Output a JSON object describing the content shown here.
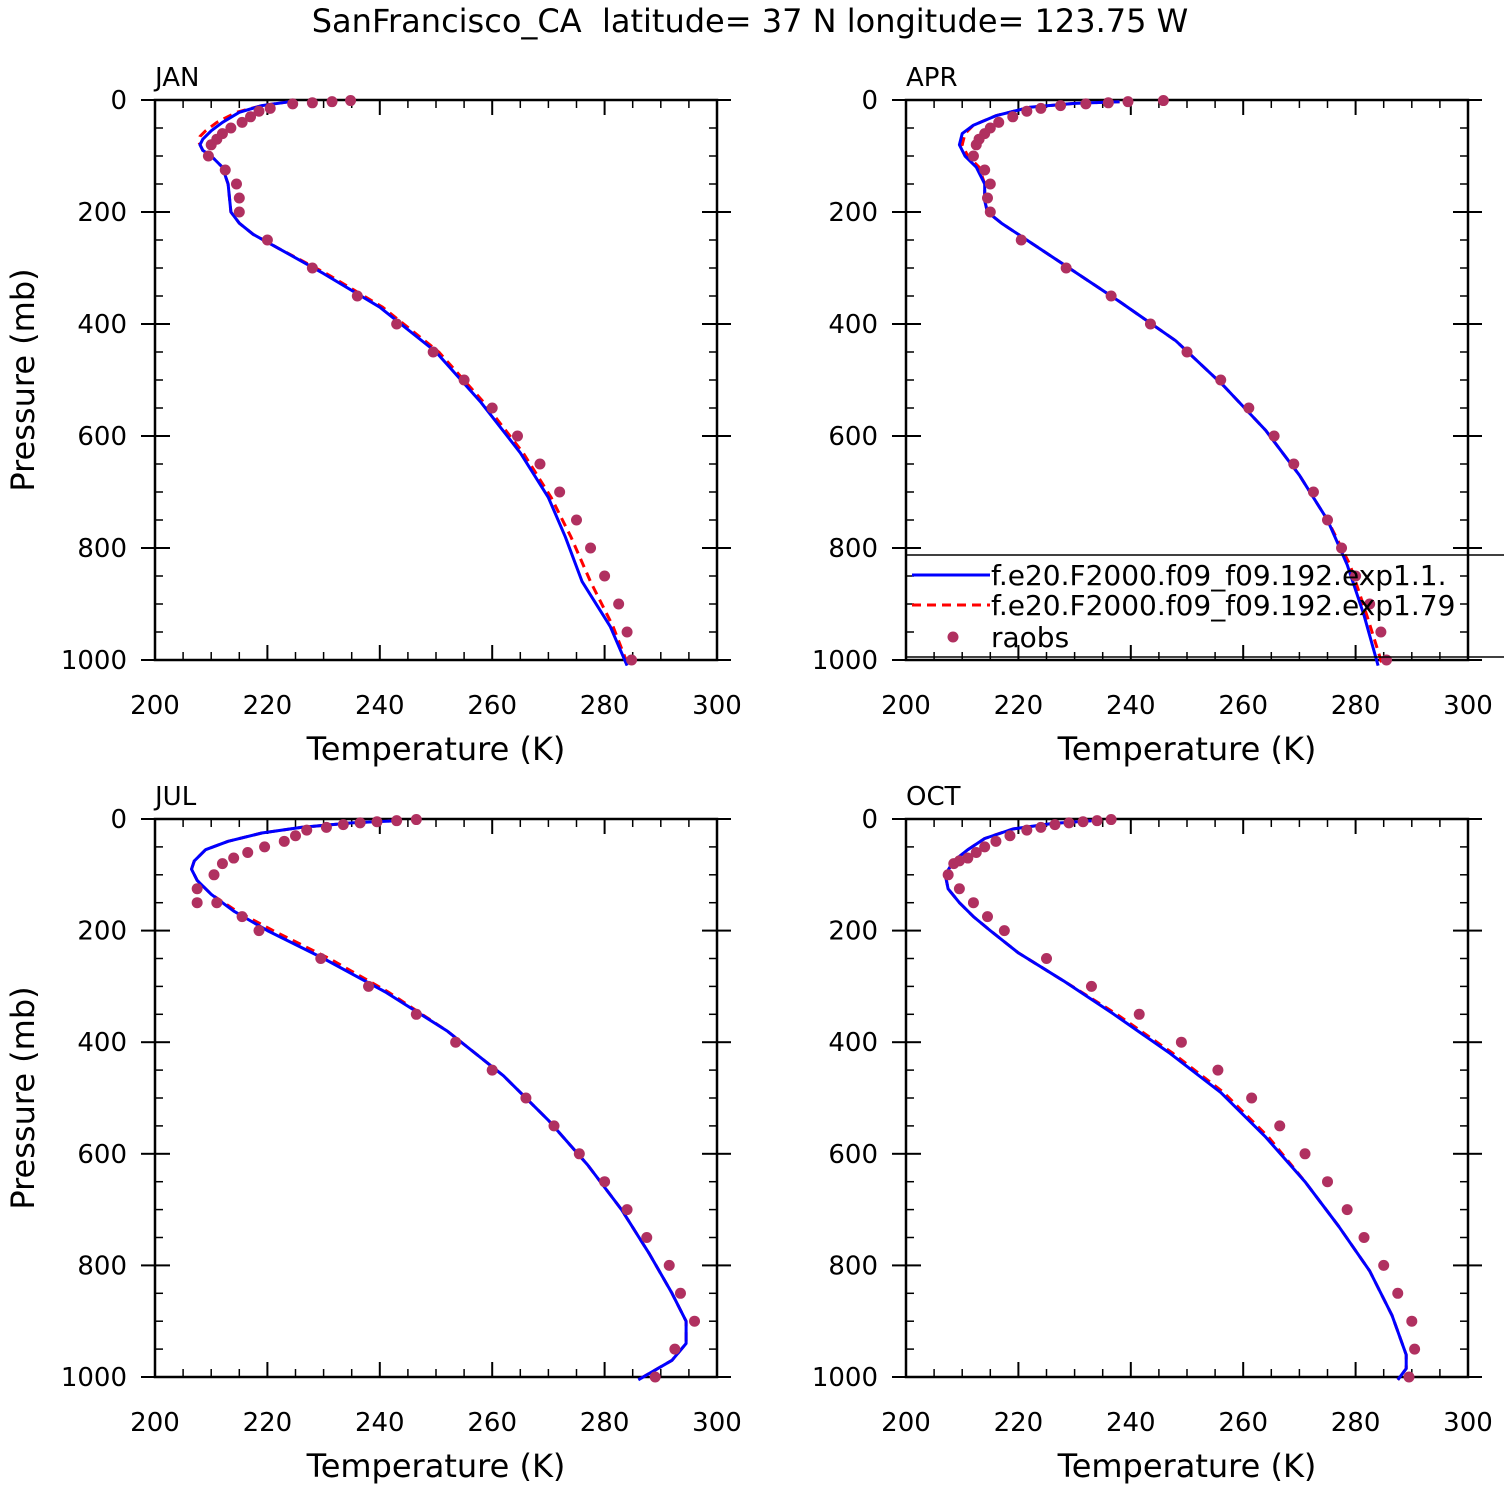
{
  "figure": {
    "title": "SanFrancisco_CA  latitude= 37 N longitude= 123.75 W"
  },
  "legend": {
    "placement": "inside APR panel, lower-right, extending past right edge",
    "entries": [
      {
        "label": "f.e20.F2000.f09_f09.192.exp1.1.",
        "style": "solid",
        "color": "#0000ff"
      },
      {
        "label": "f.e20.F2000.f09_f09.192.exp1.79",
        "style": "dashed",
        "color": "#ff0000"
      },
      {
        "label": "raobs",
        "style": "dot",
        "color": "#b03060"
      }
    ]
  },
  "colors": {
    "model_a": "#0000ff",
    "model_b": "#ff0000",
    "raobs": "#b03060",
    "axes": "#000000"
  },
  "chart_data": [
    {
      "type": "line",
      "panel": "JAN",
      "xlabel": "Temperature (K)",
      "ylabel": "Pressure (mb)",
      "xlim": [
        200,
        300
      ],
      "ylim": [
        0,
        1000
      ],
      "y_inverted": true,
      "xticks": [
        "200",
        "220",
        "240",
        "260",
        "280",
        "300"
      ],
      "yticks": [
        "0",
        "200",
        "400",
        "600",
        "800",
        "1000"
      ],
      "series": [
        {
          "name": "f.e20.F2000.f09_f09.192.exp1.1.",
          "style": "solid",
          "x": [
            224.0,
            219.0,
            215.0,
            212.0,
            210.0,
            208.5,
            208.0,
            208.5,
            210.0,
            212.0,
            213.0,
            213.5,
            215.0,
            217.5,
            222.0,
            230.0,
            240.0,
            250.0,
            258.0,
            265.0,
            270.0,
            273.0,
            276.0,
            281.0,
            284.0
          ],
          "y": [
            3,
            10,
            22,
            40,
            55,
            70,
            80,
            90,
            100,
            120,
            150,
            200,
            220,
            240,
            265,
            310,
            370,
            450,
            540,
            630,
            710,
            780,
            860,
            940,
            1010
          ]
        },
        {
          "name": "f.e20.F2000.f09_f09.192.exp1.79",
          "style": "dashed",
          "x": [
            224.0,
            219.0,
            214.5,
            211.0,
            209.0,
            208.0,
            207.8,
            208.5,
            210.0,
            212.0,
            213.0,
            213.5,
            215.0,
            217.5,
            222.0,
            230.5,
            240.5,
            250.5,
            258.5,
            265.5,
            270.5,
            274.0,
            277.5,
            281.5,
            284.2
          ],
          "y": [
            3,
            10,
            22,
            40,
            55,
            65,
            75,
            90,
            100,
            120,
            150,
            200,
            220,
            240,
            265,
            310,
            370,
            450,
            540,
            630,
            710,
            780,
            860,
            940,
            1010
          ]
        },
        {
          "name": "raobs",
          "style": "dot",
          "x": [
            234.8,
            231.5,
            228.0,
            224.5,
            220.5,
            218.5,
            217.0,
            215.5,
            213.5,
            212.0,
            211.0,
            210.0,
            209.5,
            212.5,
            214.5,
            215.0,
            215.0,
            220.0,
            228.0,
            236.0,
            243.0,
            249.5,
            255.0,
            260.0,
            264.5,
            268.5,
            272.0,
            275.0,
            277.5,
            280.0,
            282.5,
            284.0,
            284.8
          ],
          "y": [
            1,
            3,
            5,
            7,
            15,
            20,
            30,
            40,
            50,
            60,
            70,
            80,
            100,
            125,
            150,
            175,
            200,
            250,
            300,
            350,
            400,
            450,
            500,
            550,
            600,
            650,
            700,
            750,
            800,
            850,
            900,
            950,
            1000
          ]
        }
      ]
    },
    {
      "type": "line",
      "panel": "APR",
      "xlabel": "Temperature (K)",
      "ylabel": "",
      "xlim": [
        200,
        300
      ],
      "ylim": [
        0,
        1000
      ],
      "y_inverted": true,
      "xticks": [
        "200",
        "220",
        "240",
        "260",
        "280",
        "300"
      ],
      "yticks": [
        "0",
        "200",
        "400",
        "600",
        "800",
        "1000"
      ],
      "series": [
        {
          "name": "f.e20.F2000.f09_f09.192.exp1.1.",
          "style": "solid",
          "x": [
            238.0,
            230.0,
            222.0,
            216.0,
            212.0,
            210.0,
            209.5,
            210.5,
            212.5,
            214.0,
            214.0,
            214.5,
            217.0,
            221.5,
            229.0,
            238.0,
            248.0,
            256.5,
            264.0,
            270.0,
            275.0,
            278.5,
            281.5,
            284.0
          ],
          "y": [
            3,
            6,
            13,
            28,
            45,
            60,
            80,
            100,
            120,
            150,
            180,
            200,
            220,
            250,
            300,
            360,
            430,
            510,
            590,
            670,
            750,
            830,
            920,
            1010
          ]
        },
        {
          "name": "f.e20.F2000.f09_f09.192.exp1.79",
          "style": "dashed",
          "x": [
            238.0,
            230.0,
            222.0,
            216.0,
            212.0,
            210.5,
            210.0,
            211.0,
            213.0,
            214.0,
            214.0,
            214.5,
            217.0,
            221.5,
            229.0,
            238.0,
            248.0,
            256.5,
            264.0,
            270.0,
            275.0,
            279.0,
            282.0,
            284.8
          ],
          "y": [
            3,
            6,
            13,
            28,
            45,
            60,
            80,
            100,
            120,
            150,
            180,
            200,
            220,
            250,
            300,
            360,
            430,
            510,
            590,
            670,
            750,
            830,
            920,
            1010
          ]
        },
        {
          "name": "raobs",
          "style": "dot",
          "x": [
            245.8,
            239.5,
            236.0,
            232.0,
            227.5,
            224.0,
            221.5,
            219.0,
            216.5,
            215.0,
            214.0,
            213.0,
            212.5,
            212.0,
            214.0,
            215.0,
            214.5,
            215.0,
            220.5,
            228.5,
            236.5,
            243.5,
            250.0,
            256.0,
            261.0,
            265.5,
            269.0,
            272.5,
            275.0,
            277.5,
            280.0,
            282.5,
            284.5,
            285.5
          ],
          "y": [
            1,
            3,
            5,
            7,
            10,
            15,
            20,
            30,
            40,
            50,
            60,
            70,
            80,
            100,
            125,
            150,
            175,
            200,
            250,
            300,
            350,
            400,
            450,
            500,
            550,
            600,
            650,
            700,
            750,
            800,
            850,
            900,
            950,
            1000
          ]
        }
      ]
    },
    {
      "type": "line",
      "panel": "JUL",
      "xlabel": "Temperature (K)",
      "ylabel": "Pressure (mb)",
      "xlim": [
        200,
        300
      ],
      "ylim": [
        0,
        1000
      ],
      "y_inverted": true,
      "xticks": [
        "200",
        "220",
        "240",
        "260",
        "280",
        "300"
      ],
      "yticks": [
        "0",
        "200",
        "400",
        "600",
        "800",
        "1000"
      ],
      "series": [
        {
          "name": "f.e20.F2000.f09_f09.192.exp1.1.",
          "style": "solid",
          "x": [
            243.0,
            235.0,
            226.0,
            219.0,
            213.0,
            209.0,
            207.0,
            206.5,
            207.5,
            210.0,
            214.0,
            220.0,
            230.0,
            241.0,
            252.0,
            262.0,
            270.0,
            277.0,
            283.0,
            288.0,
            292.0,
            294.5,
            294.5,
            292.0,
            286.0
          ],
          "y": [
            3,
            7,
            15,
            25,
            40,
            55,
            75,
            90,
            110,
            135,
            165,
            200,
            250,
            310,
            380,
            460,
            540,
            620,
            700,
            780,
            850,
            900,
            940,
            970,
            1005
          ]
        },
        {
          "name": "f.e20.F2000.f09_f09.192.exp1.79",
          "style": "dashed",
          "x": [
            243.0,
            235.0,
            226.0,
            219.0,
            213.0,
            209.0,
            207.0,
            206.5,
            207.5,
            210.0,
            214.5,
            221.0,
            231.0,
            241.5,
            252.0,
            262.0,
            270.0,
            277.0,
            283.0,
            288.0,
            292.0,
            294.5,
            294.5,
            292.0,
            286.0
          ],
          "y": [
            3,
            7,
            15,
            25,
            40,
            55,
            75,
            90,
            110,
            135,
            165,
            200,
            250,
            310,
            380,
            460,
            540,
            620,
            700,
            780,
            850,
            900,
            940,
            970,
            1005
          ]
        },
        {
          "name": "raobs",
          "style": "dot",
          "x": [
            246.5,
            243.0,
            239.5,
            236.5,
            233.5,
            230.5,
            227.0,
            225.0,
            223.0,
            219.5,
            216.5,
            214.0,
            212.0,
            210.5,
            207.5,
            207.5,
            211.0,
            215.5,
            218.5,
            229.5,
            238.0,
            246.5,
            253.5,
            260.0,
            266.0,
            271.0,
            275.5,
            280.0,
            284.0,
            287.5,
            291.5,
            293.5,
            296.0,
            292.5,
            289.0
          ],
          "y": [
            1,
            3,
            5,
            7,
            10,
            15,
            20,
            30,
            40,
            50,
            60,
            70,
            80,
            100,
            125,
            150,
            150,
            175,
            200,
            250,
            300,
            350,
            400,
            450,
            500,
            550,
            600,
            650,
            700,
            750,
            800,
            850,
            900,
            950,
            1000
          ]
        }
      ]
    },
    {
      "type": "line",
      "panel": "OCT",
      "xlabel": "Temperature (K)",
      "ylabel": "",
      "xlim": [
        200,
        300
      ],
      "ylim": [
        0,
        1000
      ],
      "y_inverted": true,
      "xticks": [
        "200",
        "220",
        "240",
        "260",
        "280",
        "300"
      ],
      "yticks": [
        "0",
        "200",
        "400",
        "600",
        "800",
        "1000"
      ],
      "series": [
        {
          "name": "f.e20.F2000.f09_f09.192.exp1.1.",
          "style": "solid",
          "x": [
            233.0,
            226.0,
            219.0,
            214.0,
            211.0,
            208.5,
            207.0,
            207.5,
            209.5,
            212.0,
            215.0,
            220.0,
            228.0,
            237.0,
            247.0,
            256.0,
            264.0,
            271.0,
            277.0,
            282.5,
            286.5,
            289.0,
            289.0,
            287.5
          ],
          "y": [
            3,
            8,
            18,
            35,
            55,
            75,
            100,
            125,
            150,
            175,
            200,
            240,
            290,
            350,
            420,
            490,
            570,
            650,
            730,
            810,
            890,
            960,
            985,
            1005
          ]
        },
        {
          "name": "f.e20.F2000.f09_f09.192.exp1.79",
          "style": "dashed",
          "x": [
            233.0,
            226.0,
            219.0,
            214.0,
            211.0,
            208.5,
            207.0,
            207.5,
            209.5,
            212.0,
            215.0,
            220.0,
            228.0,
            237.5,
            247.5,
            256.5,
            264.5,
            271.0,
            277.0,
            282.5,
            286.5,
            289.0,
            289.0,
            287.5
          ],
          "y": [
            3,
            8,
            18,
            35,
            55,
            75,
            100,
            125,
            150,
            175,
            200,
            240,
            290,
            350,
            420,
            490,
            570,
            650,
            730,
            810,
            890,
            960,
            985,
            1005
          ]
        },
        {
          "name": "raobs",
          "style": "dot",
          "x": [
            236.5,
            234.0,
            231.5,
            229.0,
            226.5,
            224.0,
            221.5,
            218.5,
            216.0,
            214.0,
            212.5,
            211.0,
            209.5,
            208.5,
            207.5,
            209.5,
            212.0,
            214.5,
            217.5,
            225.0,
            233.0,
            241.5,
            249.0,
            255.5,
            261.5,
            266.5,
            271.0,
            275.0,
            278.5,
            281.5,
            285.0,
            287.5,
            290.0,
            290.5,
            289.5
          ],
          "y": [
            1,
            3,
            5,
            7,
            10,
            15,
            20,
            30,
            40,
            50,
            60,
            70,
            75,
            80,
            100,
            125,
            150,
            175,
            200,
            250,
            300,
            350,
            400,
            450,
            500,
            550,
            600,
            650,
            700,
            750,
            800,
            850,
            900,
            950,
            1000
          ]
        }
      ]
    }
  ]
}
